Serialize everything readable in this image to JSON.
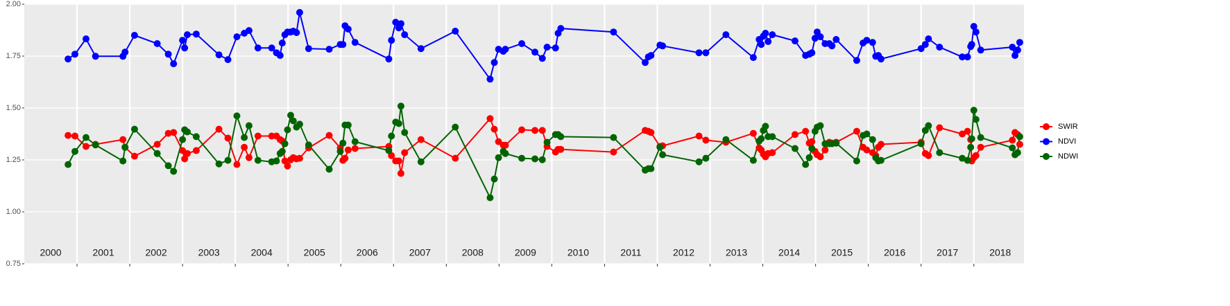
{
  "chart_data": {
    "type": "line",
    "x": [
      2000.83,
      2000.96,
      2001.17,
      2001.35,
      2001.87,
      2001.91,
      2002.09,
      2002.52,
      2002.73,
      2002.83,
      2003.0,
      2003.04,
      2003.09,
      2003.26,
      2003.69,
      2003.86,
      2004.03,
      2004.17,
      2004.26,
      2004.43,
      2004.69,
      2004.78,
      2004.85,
      2004.89,
      2004.94,
      2004.99,
      2005.05,
      2005.1,
      2005.16,
      2005.22,
      2005.39,
      2005.78,
      2005.99,
      2006.04,
      2006.08,
      2006.14,
      2006.27,
      2006.91,
      2006.96,
      2007.04,
      2007.1,
      2007.14,
      2007.21,
      2007.52,
      2008.17,
      2008.83,
      2008.91,
      2008.99,
      2009.08,
      2009.12,
      2009.43,
      2009.68,
      2009.82,
      2009.91,
      2010.07,
      2010.12,
      2010.17,
      2011.17,
      2011.77,
      2011.83,
      2011.88,
      2012.05,
      2012.1,
      2012.79,
      2012.92,
      2013.3,
      2013.82,
      2013.93,
      2013.97,
      2014.01,
      2014.05,
      2014.1,
      2014.18,
      2014.61,
      2014.81,
      2014.88,
      2014.93,
      2014.99,
      2015.03,
      2015.09,
      2015.18,
      2015.26,
      2015.31,
      2015.39,
      2015.78,
      2015.9,
      2015.97,
      2016.08,
      2016.14,
      2016.19,
      2016.24,
      2017.0,
      2017.08,
      2017.14,
      2017.35,
      2017.78,
      2017.88,
      2017.94,
      2017.96,
      2018.0,
      2018.04,
      2018.13,
      2018.73,
      2018.78,
      2018.83,
      2018.87
    ],
    "series": [
      {
        "name": "SWIR",
        "color": "#ff0000",
        "values": [
          1.368,
          1.365,
          1.315,
          1.325,
          1.348,
          1.311,
          1.268,
          1.325,
          1.378,
          1.382,
          1.295,
          1.255,
          1.281,
          1.295,
          1.398,
          1.355,
          1.228,
          1.311,
          1.261,
          1.365,
          1.365,
          1.365,
          1.348,
          1.341,
          1.245,
          1.221,
          1.251,
          1.261,
          1.255,
          1.258,
          1.308,
          1.368,
          1.308,
          1.248,
          1.258,
          1.298,
          1.305,
          1.315,
          1.271,
          1.245,
          1.245,
          1.185,
          1.285,
          1.348,
          1.258,
          1.449,
          1.398,
          1.338,
          1.321,
          1.321,
          1.395,
          1.392,
          1.392,
          1.315,
          1.288,
          1.301,
          1.301,
          1.288,
          1.392,
          1.388,
          1.382,
          1.315,
          1.318,
          1.365,
          1.345,
          1.335,
          1.378,
          1.308,
          1.298,
          1.278,
          1.265,
          1.281,
          1.285,
          1.372,
          1.388,
          1.331,
          1.338,
          1.291,
          1.275,
          1.265,
          1.298,
          1.335,
          1.331,
          1.335,
          1.388,
          1.311,
          1.298,
          1.285,
          1.271,
          1.311,
          1.325,
          1.335,
          1.281,
          1.271,
          1.405,
          1.375,
          1.388,
          1.348,
          1.245,
          1.261,
          1.271,
          1.311,
          1.345,
          1.382,
          1.372,
          1.325
        ]
      },
      {
        "name": "NDVI",
        "color": "#0000ff",
        "values": [
          1.736,
          1.759,
          1.833,
          1.749,
          1.749,
          1.769,
          1.85,
          1.81,
          1.759,
          1.713,
          1.826,
          1.789,
          1.853,
          1.856,
          1.756,
          1.733,
          1.843,
          1.86,
          1.873,
          1.789,
          1.789,
          1.766,
          1.753,
          1.813,
          1.853,
          1.866,
          1.866,
          1.87,
          1.863,
          1.96,
          1.786,
          1.783,
          1.806,
          1.806,
          1.896,
          1.88,
          1.816,
          1.736,
          1.826,
          1.913,
          1.886,
          1.906,
          1.853,
          1.786,
          1.87,
          1.639,
          1.719,
          1.783,
          1.773,
          1.783,
          1.81,
          1.769,
          1.739,
          1.793,
          1.789,
          1.86,
          1.883,
          1.866,
          1.719,
          1.746,
          1.753,
          1.803,
          1.799,
          1.766,
          1.766,
          1.853,
          1.743,
          1.83,
          1.806,
          1.846,
          1.86,
          1.82,
          1.853,
          1.823,
          1.753,
          1.759,
          1.766,
          1.836,
          1.866,
          1.843,
          1.81,
          1.81,
          1.799,
          1.83,
          1.729,
          1.813,
          1.826,
          1.816,
          1.749,
          1.753,
          1.736,
          1.786,
          1.806,
          1.833,
          1.793,
          1.746,
          1.746,
          1.796,
          1.806,
          1.893,
          1.866,
          1.779,
          1.793,
          1.753,
          1.779,
          1.816
        ]
      },
      {
        "name": "NDWI",
        "color": "#006400",
        "values": [
          1.228,
          1.291,
          1.358,
          1.322,
          1.245,
          1.311,
          1.398,
          1.281,
          1.222,
          1.195,
          1.348,
          1.395,
          1.385,
          1.362,
          1.231,
          1.248,
          1.462,
          1.358,
          1.415,
          1.248,
          1.241,
          1.245,
          1.281,
          1.291,
          1.328,
          1.395,
          1.465,
          1.438,
          1.408,
          1.422,
          1.322,
          1.205,
          1.291,
          1.331,
          1.418,
          1.418,
          1.338,
          1.295,
          1.365,
          1.432,
          1.425,
          1.509,
          1.382,
          1.241,
          1.408,
          1.068,
          1.158,
          1.261,
          1.291,
          1.281,
          1.258,
          1.255,
          1.251,
          1.335,
          1.372,
          1.372,
          1.362,
          1.358,
          1.201,
          1.208,
          1.208,
          1.311,
          1.275,
          1.241,
          1.258,
          1.348,
          1.248,
          1.341,
          1.352,
          1.392,
          1.412,
          1.362,
          1.362,
          1.305,
          1.228,
          1.261,
          1.305,
          1.388,
          1.408,
          1.415,
          1.328,
          1.328,
          1.328,
          1.331,
          1.245,
          1.368,
          1.375,
          1.348,
          1.261,
          1.245,
          1.248,
          1.328,
          1.392,
          1.415,
          1.285,
          1.258,
          1.248,
          1.311,
          1.352,
          1.489,
          1.445,
          1.358,
          1.308,
          1.275,
          1.285,
          1.362
        ]
      }
    ],
    "xlim": [
      2000,
      2018.95
    ],
    "ylim": [
      0.75,
      2.0
    ],
    "yticks": [
      {
        "value": 0.75,
        "label": "0.75"
      },
      {
        "value": 1.0,
        "label": "1.00"
      },
      {
        "value": 1.25,
        "label": "1.25"
      },
      {
        "value": 1.5,
        "label": "1.50"
      },
      {
        "value": 1.75,
        "label": "1.75"
      },
      {
        "value": 2.0,
        "label": "2.00"
      }
    ],
    "x_boundaries": [
      2001,
      2002,
      2003,
      2004,
      2005,
      2006,
      2007,
      2008,
      2009,
      2010,
      2011,
      2012,
      2013,
      2014,
      2015,
      2016,
      2017,
      2018
    ],
    "year_labels": [
      {
        "value": 2000.5,
        "label": "2000"
      },
      {
        "value": 2001.5,
        "label": "2001"
      },
      {
        "value": 2002.5,
        "label": "2002"
      },
      {
        "value": 2003.5,
        "label": "2003"
      },
      {
        "value": 2004.5,
        "label": "2004"
      },
      {
        "value": 2005.5,
        "label": "2005"
      },
      {
        "value": 2006.5,
        "label": "2006"
      },
      {
        "value": 2007.5,
        "label": "2007"
      },
      {
        "value": 2008.5,
        "label": "2008"
      },
      {
        "value": 2009.5,
        "label": "2009"
      },
      {
        "value": 2010.5,
        "label": "2010"
      },
      {
        "value": 2011.5,
        "label": "2011"
      },
      {
        "value": 2012.5,
        "label": "2012"
      },
      {
        "value": 2013.5,
        "label": "2013"
      },
      {
        "value": 2014.5,
        "label": "2014"
      },
      {
        "value": 2015.5,
        "label": "2015"
      },
      {
        "value": 2016.5,
        "label": "2016"
      },
      {
        "value": 2017.5,
        "label": "2017"
      },
      {
        "value": 2018.5,
        "label": "2018"
      }
    ],
    "grid": true,
    "legend": "right"
  }
}
